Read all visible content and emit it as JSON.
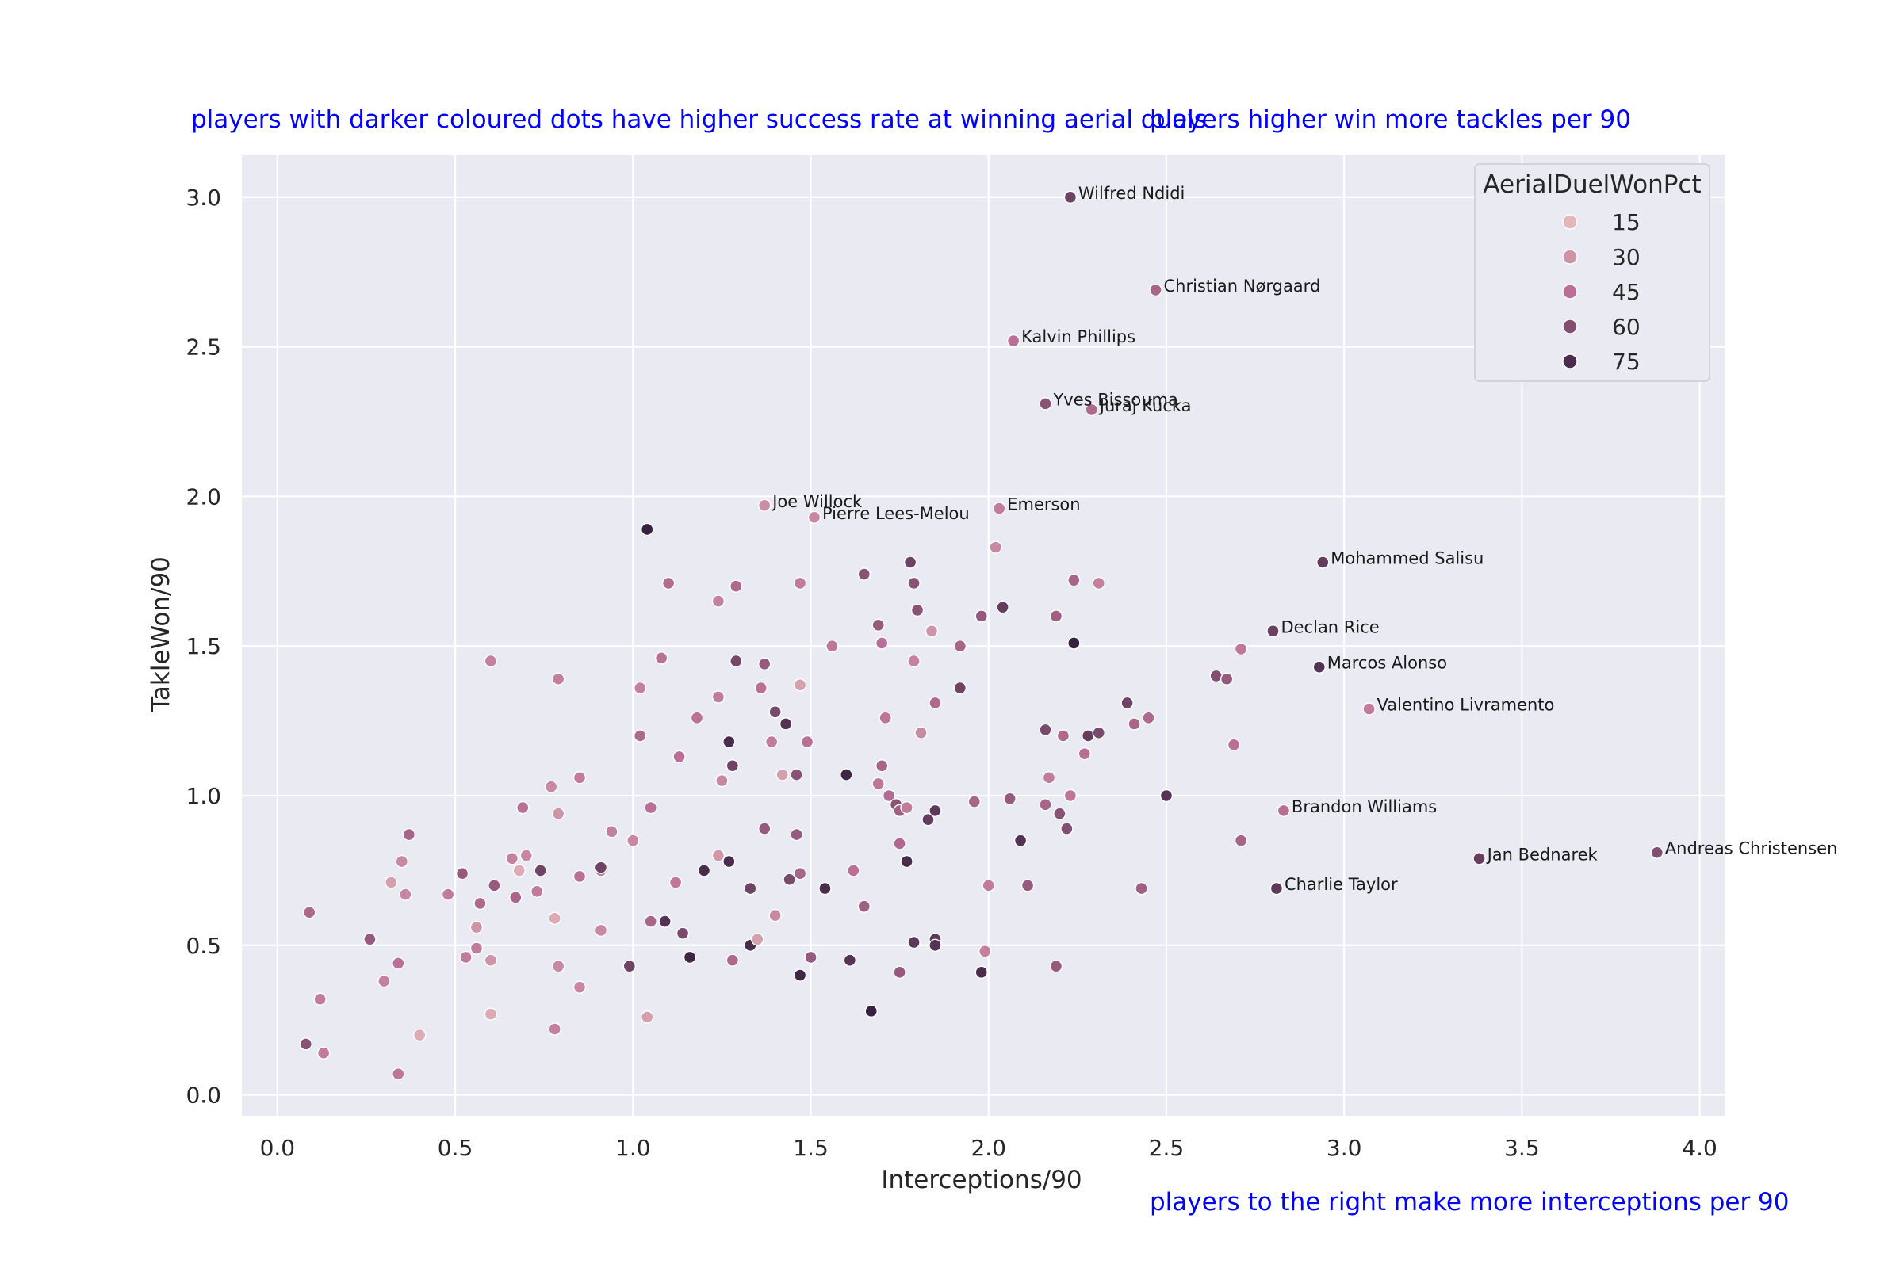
{
  "chart_data": {
    "type": "scatter",
    "title": "",
    "xlabel": "Interceptions/90",
    "ylabel": "TakleWon/90",
    "xlim": [
      -0.1,
      4.07
    ],
    "ylim": [
      -0.07,
      3.14
    ],
    "xticks": [
      0.0,
      0.5,
      1.0,
      1.5,
      2.0,
      2.5,
      3.0,
      3.5,
      4.0
    ],
    "yticks": [
      0.0,
      0.5,
      1.0,
      1.5,
      2.0,
      2.5,
      3.0
    ],
    "grid": true,
    "legend_placement": "top-right",
    "hue": {
      "name": "AerialDuelWonPct",
      "range": [
        5,
        85
      ],
      "legend_values": [
        15,
        30,
        45,
        60,
        75
      ],
      "color_low": "#f0cfc4",
      "color_high": "#241634"
    },
    "annotations": [
      "players with darker coloured dots have higher success rate at winning aerial duels",
      "players higher win more tackles per 90",
      "players to the right make more interceptions per 90"
    ],
    "labeled_points": [
      {
        "name": "Wilfred Ndidi",
        "x": 2.23,
        "y": 3.0,
        "hue": 65
      },
      {
        "name": "Christian Nørgaard",
        "x": 2.47,
        "y": 2.69,
        "hue": 50
      },
      {
        "name": "Kalvin Phillips",
        "x": 2.07,
        "y": 2.52,
        "hue": 45
      },
      {
        "name": "Yves Bissouma",
        "x": 2.16,
        "y": 2.31,
        "hue": 58
      },
      {
        "name": "Juraj Kucka",
        "x": 2.29,
        "y": 2.29,
        "hue": 48
      },
      {
        "name": "Joe Willock",
        "x": 1.37,
        "y": 1.97,
        "hue": 33
      },
      {
        "name": "Pierre Lees-Melou",
        "x": 1.51,
        "y": 1.93,
        "hue": 35
      },
      {
        "name": "Emerson",
        "x": 2.03,
        "y": 1.96,
        "hue": 40
      },
      {
        "name": "Mohammed Salisu",
        "x": 2.94,
        "y": 1.78,
        "hue": 68
      },
      {
        "name": "Declan Rice",
        "x": 2.8,
        "y": 1.55,
        "hue": 66
      },
      {
        "name": "Marcos Alonso",
        "x": 2.93,
        "y": 1.43,
        "hue": 72
      },
      {
        "name": "Valentino Livramento",
        "x": 3.07,
        "y": 1.29,
        "hue": 40
      },
      {
        "name": "Brandon Williams",
        "x": 2.83,
        "y": 0.95,
        "hue": 46
      },
      {
        "name": "Jan Bednarek",
        "x": 3.38,
        "y": 0.79,
        "hue": 67
      },
      {
        "name": "Andreas Christensen",
        "x": 3.88,
        "y": 0.81,
        "hue": 60
      },
      {
        "name": "Charlie Taylor",
        "x": 2.81,
        "y": 0.69,
        "hue": 70
      }
    ],
    "points": [
      [
        1.04,
        1.89,
        80
      ],
      [
        1.1,
        1.71,
        47
      ],
      [
        1.24,
        1.65,
        38
      ],
      [
        1.29,
        1.7,
        48
      ],
      [
        1.47,
        1.71,
        40
      ],
      [
        1.65,
        1.74,
        58
      ],
      [
        1.78,
        1.78,
        65
      ],
      [
        1.79,
        1.71,
        58
      ],
      [
        1.69,
        1.57,
        55
      ],
      [
        1.7,
        1.51,
        45
      ],
      [
        1.8,
        1.62,
        58
      ],
      [
        1.84,
        1.55,
        30
      ],
      [
        1.92,
        1.5,
        50
      ],
      [
        1.98,
        1.6,
        55
      ],
      [
        2.04,
        1.63,
        68
      ],
      [
        2.19,
        1.6,
        52
      ],
      [
        2.24,
        1.72,
        50
      ],
      [
        2.31,
        1.71,
        38
      ],
      [
        2.24,
        1.51,
        80
      ],
      [
        2.02,
        1.83,
        35
      ],
      [
        1.08,
        1.46,
        45
      ],
      [
        1.29,
        1.45,
        63
      ],
      [
        1.37,
        1.44,
        55
      ],
      [
        1.47,
        1.37,
        25
      ],
      [
        1.56,
        1.5,
        42
      ],
      [
        1.79,
        1.45,
        38
      ],
      [
        1.36,
        1.36,
        45
      ],
      [
        1.24,
        1.33,
        40
      ],
      [
        1.18,
        1.26,
        44
      ],
      [
        1.02,
        1.36,
        38
      ],
      [
        1.4,
        1.28,
        62
      ],
      [
        1.43,
        1.24,
        72
      ],
      [
        1.27,
        1.18,
        75
      ],
      [
        1.39,
        1.18,
        40
      ],
      [
        1.49,
        1.18,
        45
      ],
      [
        1.71,
        1.26,
        43
      ],
      [
        1.81,
        1.21,
        34
      ],
      [
        1.85,
        1.31,
        48
      ],
      [
        1.92,
        1.36,
        65
      ],
      [
        2.16,
        1.22,
        62
      ],
      [
        2.21,
        1.2,
        48
      ],
      [
        2.28,
        1.2,
        68
      ],
      [
        2.31,
        1.21,
        62
      ],
      [
        2.39,
        1.31,
        65
      ],
      [
        2.41,
        1.24,
        50
      ],
      [
        2.45,
        1.26,
        48
      ],
      [
        2.64,
        1.4,
        60
      ],
      [
        2.67,
        1.39,
        55
      ],
      [
        2.71,
        1.49,
        42
      ],
      [
        2.69,
        1.17,
        45
      ],
      [
        2.27,
        1.14,
        45
      ],
      [
        2.17,
        1.06,
        40
      ],
      [
        1.02,
        1.2,
        48
      ],
      [
        1.13,
        1.13,
        45
      ],
      [
        1.28,
        1.1,
        65
      ],
      [
        1.46,
        1.07,
        58
      ],
      [
        1.42,
        1.07,
        25
      ],
      [
        1.25,
        1.05,
        35
      ],
      [
        1.6,
        1.07,
        78
      ],
      [
        1.69,
        1.04,
        43
      ],
      [
        1.7,
        1.1,
        50
      ],
      [
        1.72,
        1.0,
        47
      ],
      [
        1.74,
        0.97,
        58
      ],
      [
        1.75,
        0.95,
        52
      ],
      [
        1.77,
        0.96,
        40
      ],
      [
        1.83,
        0.92,
        68
      ],
      [
        1.85,
        0.95,
        70
      ],
      [
        1.96,
        0.98,
        50
      ],
      [
        2.06,
        0.99,
        55
      ],
      [
        2.16,
        0.97,
        50
      ],
      [
        2.2,
        0.94,
        58
      ],
      [
        2.22,
        0.89,
        60
      ],
      [
        2.23,
        1.0,
        42
      ],
      [
        2.5,
        1.0,
        72
      ],
      [
        2.09,
        0.85,
        72
      ],
      [
        1.75,
        0.84,
        48
      ],
      [
        1.77,
        0.78,
        75
      ],
      [
        1.46,
        0.87,
        55
      ],
      [
        1.37,
        0.89,
        55
      ],
      [
        1.27,
        0.78,
        75
      ],
      [
        1.2,
        0.75,
        75
      ],
      [
        1.05,
        0.96,
        45
      ],
      [
        0.94,
        0.88,
        38
      ],
      [
        0.85,
        1.06,
        40
      ],
      [
        0.77,
        1.03,
        35
      ],
      [
        0.69,
        0.96,
        45
      ],
      [
        0.79,
        0.94,
        30
      ],
      [
        0.79,
        1.39,
        38
      ],
      [
        0.6,
        1.45,
        38
      ],
      [
        0.37,
        0.87,
        50
      ],
      [
        0.35,
        0.78,
        35
      ],
      [
        0.32,
        0.71,
        25
      ],
      [
        0.36,
        0.67,
        35
      ],
      [
        0.52,
        0.74,
        55
      ],
      [
        0.48,
        0.67,
        40
      ],
      [
        0.57,
        0.64,
        48
      ],
      [
        0.61,
        0.7,
        55
      ],
      [
        0.66,
        0.79,
        38
      ],
      [
        0.67,
        0.66,
        50
      ],
      [
        0.68,
        0.75,
        20
      ],
      [
        0.7,
        0.8,
        35
      ],
      [
        0.73,
        0.68,
        40
      ],
      [
        0.74,
        0.75,
        65
      ],
      [
        0.85,
        0.73,
        45
      ],
      [
        0.91,
        0.75,
        38
      ],
      [
        0.91,
        0.76,
        65
      ],
      [
        1.0,
        0.85,
        35
      ],
      [
        1.12,
        0.71,
        42
      ],
      [
        1.24,
        0.8,
        28
      ],
      [
        1.33,
        0.69,
        65
      ],
      [
        1.44,
        0.72,
        62
      ],
      [
        1.47,
        0.74,
        50
      ],
      [
        1.54,
        0.69,
        75
      ],
      [
        1.62,
        0.75,
        45
      ],
      [
        1.65,
        0.63,
        52
      ],
      [
        1.79,
        0.51,
        70
      ],
      [
        1.85,
        0.52,
        70
      ],
      [
        1.85,
        0.5,
        72
      ],
      [
        2.0,
        0.7,
        40
      ],
      [
        2.11,
        0.7,
        55
      ],
      [
        2.43,
        0.69,
        52
      ],
      [
        2.71,
        0.85,
        50
      ],
      [
        0.09,
        0.61,
        48
      ],
      [
        0.26,
        0.52,
        55
      ],
      [
        0.3,
        0.38,
        38
      ],
      [
        0.34,
        0.44,
        45
      ],
      [
        0.12,
        0.32,
        40
      ],
      [
        0.08,
        0.17,
        58
      ],
      [
        0.13,
        0.14,
        40
      ],
      [
        0.34,
        0.07,
        42
      ],
      [
        0.4,
        0.2,
        20
      ],
      [
        0.53,
        0.46,
        40
      ],
      [
        0.56,
        0.49,
        40
      ],
      [
        0.56,
        0.56,
        30
      ],
      [
        0.6,
        0.45,
        30
      ],
      [
        0.6,
        0.27,
        20
      ],
      [
        0.78,
        0.59,
        20
      ],
      [
        0.79,
        0.43,
        35
      ],
      [
        0.78,
        0.22,
        38
      ],
      [
        0.85,
        0.36,
        35
      ],
      [
        0.91,
        0.55,
        35
      ],
      [
        0.99,
        0.43,
        65
      ],
      [
        1.05,
        0.58,
        50
      ],
      [
        1.09,
        0.58,
        72
      ],
      [
        1.14,
        0.54,
        62
      ],
      [
        1.16,
        0.46,
        78
      ],
      [
        1.04,
        0.26,
        25
      ],
      [
        1.28,
        0.45,
        48
      ],
      [
        1.33,
        0.5,
        75
      ],
      [
        1.35,
        0.52,
        25
      ],
      [
        1.4,
        0.6,
        35
      ],
      [
        1.47,
        0.4,
        78
      ],
      [
        1.5,
        0.46,
        55
      ],
      [
        1.61,
        0.45,
        72
      ],
      [
        1.67,
        0.28,
        80
      ],
      [
        1.75,
        0.41,
        55
      ],
      [
        1.98,
        0.41,
        75
      ],
      [
        1.99,
        0.48,
        38
      ],
      [
        2.19,
        0.43,
        55
      ]
    ]
  }
}
